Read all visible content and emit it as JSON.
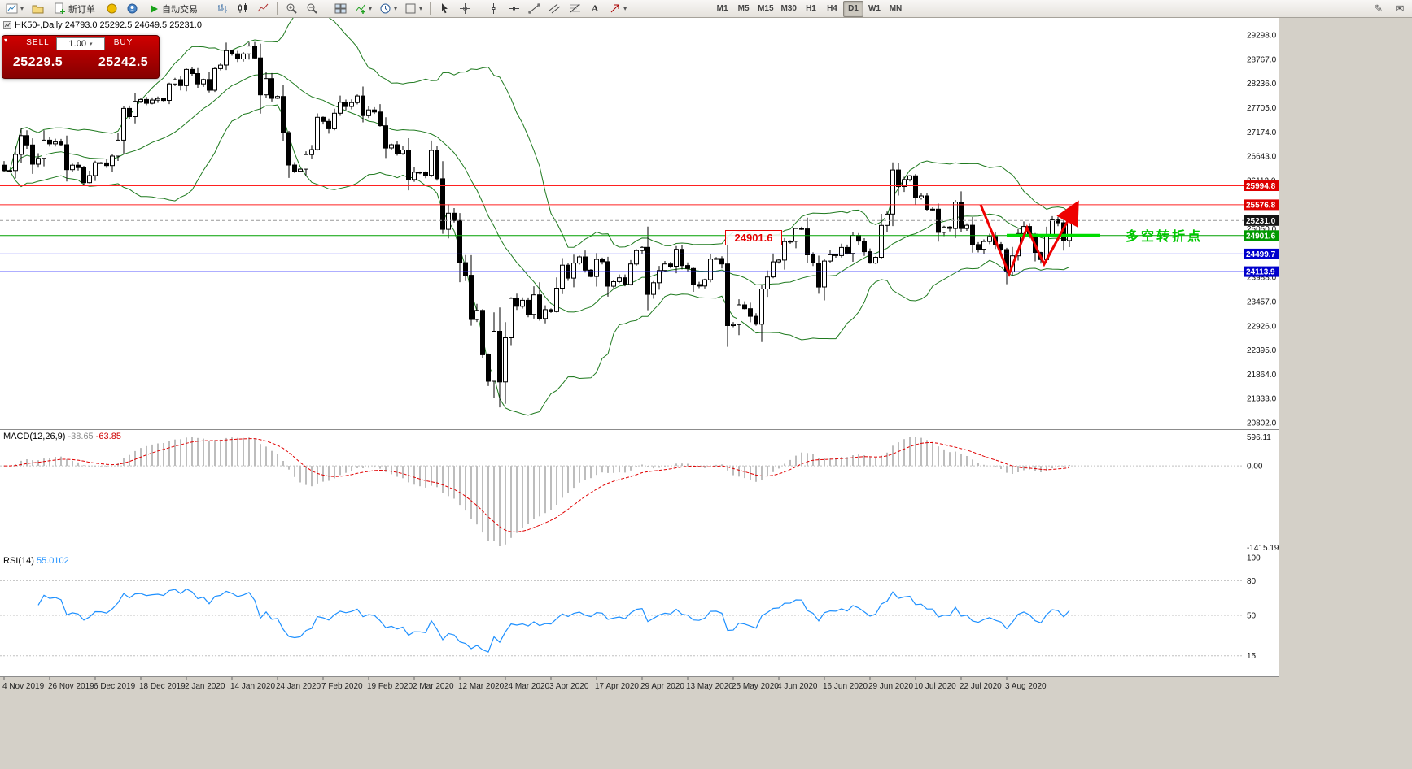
{
  "toolbar": {
    "new_order": "新订单",
    "autotrading": "自动交易",
    "timeframes": [
      "M1",
      "M5",
      "M15",
      "M30",
      "H1",
      "H4",
      "D1",
      "W1",
      "MN"
    ],
    "active_timeframe": "D1",
    "text_tool": "A"
  },
  "one_click": {
    "sell_label": "SELL",
    "buy_label": "BUY",
    "sell_price": "25229.5",
    "buy_price": "25242.5",
    "volume": "1.00"
  },
  "chart_header": {
    "title": "HK50-,Daily 24793.0 25292.5 24649.5 25231.0"
  },
  "macd_panel": {
    "label": "MACD(12,26,9)",
    "value_main": "-38.65",
    "value_signal": "-63.85",
    "axis_max": "596.11",
    "axis_zero": "0.00",
    "axis_min": "-1415.19"
  },
  "rsi_panel": {
    "label": "RSI(14)",
    "value": "55.0102",
    "levels": [
      80,
      50,
      15
    ],
    "axis": [
      "100",
      "80",
      "50",
      "15"
    ]
  },
  "chart_data": {
    "type": "candlestick",
    "symbol": "HK50-",
    "period": "Daily",
    "last_candle": {
      "o": 24793.0,
      "h": 25292.5,
      "l": 24649.5,
      "c": 25231.0
    },
    "min_low": 21139,
    "y_min": 20802.0,
    "y_max": 29298.0,
    "y_ticks": [
      "29298.0",
      "28767.0",
      "28236.0",
      "27705.0",
      "27174.0",
      "26643.0",
      "26112.0",
      "25581.0",
      "25050.0",
      "24519.0",
      "23988.0",
      "23457.0",
      "22926.0",
      "22395.0",
      "21864.0",
      "21333.0",
      "20802.0"
    ],
    "x_labels": [
      "4 Nov 2019",
      "26 Nov 2019",
      "6 Dec 2019",
      "18 Dec 2019",
      "2 Jan 2020",
      "14 Jan 2020",
      "24 Jan 2020",
      "7 Feb 2020",
      "19 Feb 2020",
      "2 Mar 2020",
      "12 Mar 2020",
      "24 Mar 2020",
      "3 Apr 2020",
      "17 Apr 2020",
      "29 Apr 2020",
      "13 May 2020",
      "25 May 2020",
      "4 Jun 2020",
      "16 Jun 2020",
      "29 Jun 2020",
      "10 Jul 2020",
      "22 Jul 2020",
      "3 Aug 2020"
    ],
    "x_label_every": 8,
    "closes": [
      26324,
      26327,
      26681,
      27093,
      26889,
      26466,
      26595,
      26993,
      26913,
      26954,
      26893,
      26346,
      26444,
      26391,
      26062,
      26217,
      26498,
      26494,
      26436,
      26645,
      26994,
      27688,
      27508,
      27843,
      27884,
      27800,
      27871,
      27906,
      27864,
      28225,
      28319,
      28189,
      28543,
      28452,
      28226,
      28322,
      28087,
      28561,
      28638,
      28954,
      28885,
      28773,
      28883,
      29056,
      28795,
      27985,
      28341,
      27909,
      27949,
      27161,
      26449,
      26313,
      26357,
      26676,
      26786,
      27493,
      27404,
      27242,
      27583,
      27824,
      27730,
      27816,
      27960,
      27530,
      27656,
      27609,
      27309,
      26821,
      26893,
      26697,
      26778,
      26130,
      26292,
      26285,
      26223,
      26768,
      26147,
      25040,
      25392,
      25232,
      24309,
      24033,
      23064,
      23264,
      22292,
      21709,
      22805,
      21696,
      22663,
      23527,
      23352,
      23484,
      23175,
      23603,
      23085,
      23280,
      23236,
      23749,
      24253,
      23970,
      24300,
      24435,
      24145,
      24006,
      24380,
      24330,
      23793,
      23893,
      23977,
      23831,
      24280,
      24575,
      24644,
      23614,
      23869,
      24137,
      24280,
      24231,
      24602,
      24246,
      24180,
      23830,
      23797,
      23935,
      24388,
      24400,
      24280,
      22930,
      22952,
      23384,
      23301,
      23133,
      22961,
      23732,
      23996,
      24326,
      24366,
      24770,
      24777,
      25057,
      25049,
      24480,
      24301,
      23776,
      24344,
      24481,
      24465,
      24643,
      24511,
      24907,
      24781,
      24550,
      24301,
      24427,
      25125,
      25373,
      26339,
      25975,
      26129,
      26211,
      25727,
      25772,
      25478,
      25481,
      24971,
      25089,
      25058,
      25636,
      25057,
      25128,
      24705,
      24603,
      24772,
      24883,
      24710,
      24595,
      24107,
      24458,
      24946,
      25102,
      24930,
      24532,
      24377,
      24890,
      25245,
      25183,
      24793,
      25231
    ],
    "bollinger": {
      "period": 20,
      "deviation": 2,
      "color": "#1f7a1f"
    },
    "levels": [
      {
        "price": 25994.8,
        "label": "25994.8",
        "line": "#ff2020",
        "box": "#dd0000"
      },
      {
        "price": 25576.8,
        "label": "25576.8",
        "line": "#ff2020",
        "box": "#dd0000"
      },
      {
        "price": 24901.6,
        "label": "24901.6",
        "line": "#00a000",
        "box": "#009900"
      },
      {
        "price": 24499.7,
        "label": "24499.7",
        "line": "#2828ff",
        "box": "#0000cc"
      },
      {
        "price": 24113.9,
        "label": "24113.9",
        "line": "#2828ff",
        "box": "#0000cc"
      }
    ],
    "bid": {
      "price": 25231.0,
      "label": "25231.0",
      "box": "#141414"
    },
    "annotations": {
      "price_callout": "24901.6",
      "callout_color": "#e60000",
      "turning_point_text": "多空转折点",
      "turning_point_color": "#00c800",
      "arrow_color": "#ee0000",
      "support_price": 24901.6,
      "support_color": "#00dc00"
    }
  }
}
